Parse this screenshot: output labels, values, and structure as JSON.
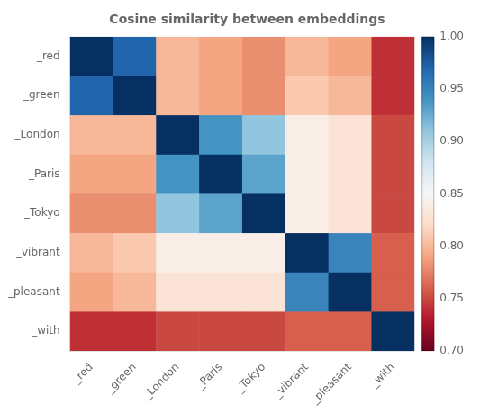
{
  "chart_data": {
    "type": "heatmap",
    "title": "Cosine similarity between embeddings",
    "categories": [
      "_red",
      "_green",
      "_London",
      "_Paris",
      "_Tokyo",
      "_vibrant",
      "_pleasant",
      "_with"
    ],
    "values": [
      [
        1.0,
        0.97,
        0.8,
        0.79,
        0.78,
        0.8,
        0.79,
        0.74
      ],
      [
        0.97,
        1.0,
        0.8,
        0.79,
        0.78,
        0.81,
        0.8,
        0.74
      ],
      [
        0.8,
        0.8,
        1.0,
        0.94,
        0.91,
        0.84,
        0.83,
        0.75
      ],
      [
        0.79,
        0.79,
        0.94,
        1.0,
        0.93,
        0.84,
        0.83,
        0.75
      ],
      [
        0.78,
        0.78,
        0.91,
        0.93,
        1.0,
        0.84,
        0.83,
        0.75
      ],
      [
        0.8,
        0.81,
        0.84,
        0.84,
        0.84,
        1.0,
        0.95,
        0.76
      ],
      [
        0.79,
        0.8,
        0.83,
        0.83,
        0.83,
        0.95,
        1.0,
        0.76
      ],
      [
        0.74,
        0.74,
        0.75,
        0.75,
        0.75,
        0.76,
        0.76,
        1.0
      ]
    ],
    "colorbar_lim": [
      0.7,
      1.0
    ],
    "colorbar_ticks": [
      {
        "value": 0.7,
        "label": "0.70"
      },
      {
        "value": 0.75,
        "label": "0.75"
      },
      {
        "value": 0.8,
        "label": "0.80"
      },
      {
        "value": 0.85,
        "label": "0.85"
      },
      {
        "value": 0.9,
        "label": "0.90"
      },
      {
        "value": 0.95,
        "label": "0.95"
      },
      {
        "value": 1.0,
        "label": "1.00"
      }
    ],
    "grid": false
  }
}
